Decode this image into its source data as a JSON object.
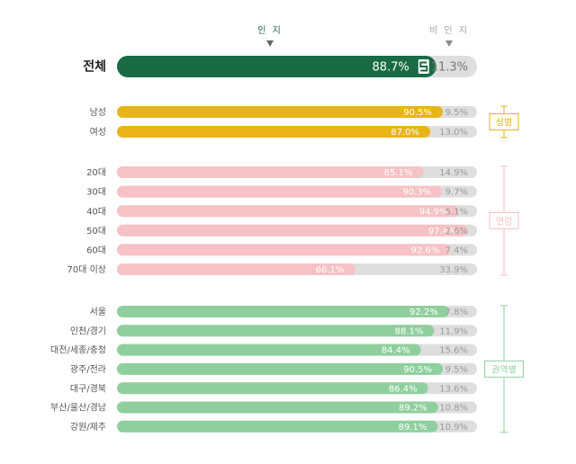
{
  "header": {
    "aware_label": "인 지",
    "unaware_label": "비 인 지"
  },
  "colors": {
    "total": "#1a6b44",
    "gender": "#e8b418",
    "age": "#f6c2c5",
    "region": "#8fcf9e",
    "unaware": "#dedede",
    "aware_header": "#1a6b44",
    "unaware_header": "#a0a0a0"
  },
  "chart_data": {
    "type": "bar",
    "orientation": "horizontal",
    "stacked_percent": true,
    "total": {
      "label": "전체",
      "aware": 88.7,
      "unaware": 11.3
    },
    "groups": [
      {
        "name": "성별",
        "rows": [
          {
            "label": "남성",
            "aware": 90.5,
            "unaware": 9.5
          },
          {
            "label": "여성",
            "aware": 87.0,
            "unaware": 13.0
          }
        ]
      },
      {
        "name": "연령",
        "rows": [
          {
            "label": "20대",
            "aware": 85.1,
            "unaware": 14.9
          },
          {
            "label": "30대",
            "aware": 90.3,
            "unaware": 9.7
          },
          {
            "label": "40대",
            "aware": 94.9,
            "unaware": 5.1
          },
          {
            "label": "50대",
            "aware": 97.4,
            "unaware": 2.6
          },
          {
            "label": "60대",
            "aware": 92.6,
            "unaware": 7.4
          },
          {
            "label": "70대 이상",
            "aware": 66.1,
            "unaware": 33.9
          }
        ]
      },
      {
        "name": "권역별",
        "rows": [
          {
            "label": "서울",
            "aware": 92.2,
            "unaware": 7.8
          },
          {
            "label": "인천/경기",
            "aware": 88.1,
            "unaware": 11.9
          },
          {
            "label": "대전/세종/충청",
            "aware": 84.4,
            "unaware": 15.6
          },
          {
            "label": "광주/전라",
            "aware": 90.5,
            "unaware": 9.5
          },
          {
            "label": "대구/경북",
            "aware": 86.4,
            "unaware": 13.6
          },
          {
            "label": "부산/울산/경남",
            "aware": 89.2,
            "unaware": 10.8
          },
          {
            "label": "강원/제주",
            "aware": 89.1,
            "unaware": 10.9
          }
        ]
      }
    ]
  }
}
